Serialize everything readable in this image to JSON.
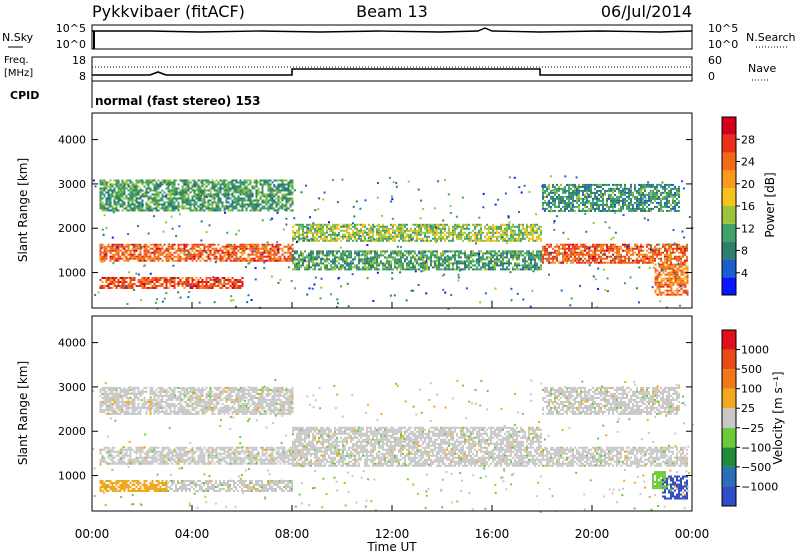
{
  "header": {
    "station": "Pykkvibaer (fitACF)",
    "beam": "Beam 13",
    "date": "06/Jul/2014"
  },
  "top_panels": {
    "nsky_label": "N.Sky",
    "nsky_ticks": [
      "10^5",
      "10^0"
    ],
    "nsearch_label": "N.Search",
    "nsearch_ticks": [
      "10^5",
      "10^0"
    ],
    "freq_label": "Freq.",
    "freq_unit": "[MHz]",
    "freq_ticks": [
      "18",
      "8"
    ],
    "nave_label": "Nave",
    "nave_ticks": [
      "60",
      "0"
    ],
    "cpid_label": "CPID",
    "cpid_text": "normal (fast stereo) 153"
  },
  "chart_data": [
    {
      "type": "heatmap",
      "name": "power",
      "ylabel": "Slant Range [km]",
      "ylim": [
        200,
        4600
      ],
      "yticks": [
        "1000",
        "2000",
        "3000",
        "4000"
      ],
      "yticks_values": [
        1000,
        2000,
        3000,
        4000
      ],
      "xlim_hours": [
        0,
        24
      ],
      "colorbar_label": "Power [dB]",
      "colorbar_ticks": [
        "4",
        "8",
        "12",
        "16",
        "20",
        "24",
        "28"
      ],
      "colorbar_colors": [
        "#0a14ff",
        "#1a5fd0",
        "#2f7f6a",
        "#3fa36a",
        "#9bc43a",
        "#f7c21c",
        "#f89a1e",
        "#f06a1a",
        "#e8301a",
        "#d4001a"
      ],
      "bands": [
        {
          "x0": 0.3,
          "x1": 8.0,
          "r0": 1250,
          "r1": 1650,
          "val": 26
        },
        {
          "x0": 0.3,
          "x1": 6.0,
          "r0": 650,
          "r1": 900,
          "val": 27
        },
        {
          "x0": 0.3,
          "x1": 8.0,
          "r0": 2400,
          "r1": 3100,
          "val": 10
        },
        {
          "x0": 8.0,
          "x1": 18.0,
          "r0": 1700,
          "r1": 2100,
          "val": 14
        },
        {
          "x0": 8.0,
          "x1": 18.0,
          "r0": 1050,
          "r1": 1500,
          "val": 10
        },
        {
          "x0": 18.0,
          "x1": 23.8,
          "r0": 1200,
          "r1": 1650,
          "val": 26
        },
        {
          "x0": 18.0,
          "x1": 23.5,
          "r0": 2400,
          "r1": 3000,
          "val": 9
        },
        {
          "x0": 22.5,
          "x1": 23.8,
          "r0": 500,
          "r1": 1200,
          "val": 24
        }
      ]
    },
    {
      "type": "heatmap",
      "name": "velocity",
      "ylabel": "Slant Range [km]",
      "ylim": [
        200,
        4600
      ],
      "yticks": [
        "1000",
        "2000",
        "3000",
        "4000"
      ],
      "yticks_values": [
        1000,
        2000,
        3000,
        4000
      ],
      "xlim_hours": [
        0,
        24
      ],
      "xticks": [
        "00:00",
        "04:00",
        "08:00",
        "12:00",
        "16:00",
        "20:00",
        "00:00"
      ],
      "xlabel": "Time UT",
      "colorbar_label": "Velocity [m s⁻¹]",
      "colorbar_ticks": [
        "1000",
        "500",
        "100",
        "25",
        "−25",
        "−100",
        "−500",
        "−1000"
      ],
      "colorbar_colors": [
        "#2f4cc4",
        "#2a6fb8",
        "#1f8c3a",
        "#6bcb3a",
        "#c8c8c8",
        "#f2a81e",
        "#f07818",
        "#e84a14",
        "#e0101a"
      ],
      "bands": [
        {
          "x0": 0.3,
          "x1": 8.0,
          "r0": 1250,
          "r1": 1650,
          "cls": "gray"
        },
        {
          "x0": 0.3,
          "x1": 3.0,
          "r0": 650,
          "r1": 900,
          "cls": "orange"
        },
        {
          "x0": 3.0,
          "x1": 8.0,
          "r0": 650,
          "r1": 900,
          "cls": "gray"
        },
        {
          "x0": 0.3,
          "x1": 8.0,
          "r0": 2400,
          "r1": 3000,
          "cls": "gray"
        },
        {
          "x0": 8.0,
          "x1": 18.0,
          "r0": 1200,
          "r1": 2100,
          "cls": "gray"
        },
        {
          "x0": 18.0,
          "x1": 23.8,
          "r0": 1200,
          "r1": 1650,
          "cls": "gray"
        },
        {
          "x0": 18.0,
          "x1": 23.5,
          "r0": 2400,
          "r1": 3000,
          "cls": "gray"
        },
        {
          "x0": 22.8,
          "x1": 23.8,
          "r0": 500,
          "r1": 1000,
          "cls": "blue"
        },
        {
          "x0": 22.4,
          "x1": 22.9,
          "r0": 700,
          "r1": 1100,
          "cls": "green"
        }
      ]
    }
  ]
}
